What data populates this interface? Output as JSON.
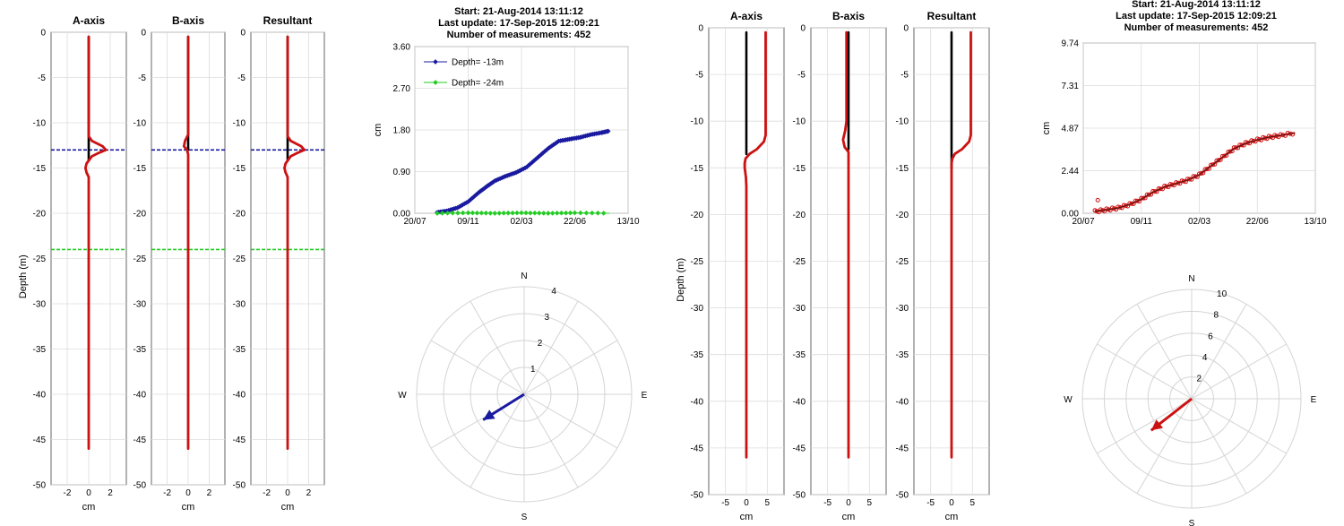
{
  "chart_data": [
    {
      "type": "line",
      "panel": "profile-a-axis",
      "title": "A-axis",
      "xlabel": "cm",
      "ylabel": "Depth (m)",
      "xlim": [
        -3.5,
        3.5
      ],
      "xticks": [
        "-2",
        "0",
        "2"
      ],
      "ylim": [
        -50,
        0
      ],
      "yticks": [
        "0",
        "-5",
        "-10",
        "-15",
        "-20",
        "-25",
        "-30",
        "-35",
        "-40",
        "-45",
        "-50"
      ],
      "grid": true,
      "reference_lines": [
        {
          "depth": -13,
          "color": "#1a1aa0"
        },
        {
          "depth": -24,
          "color": "#22cc22"
        }
      ],
      "series": [
        {
          "color": "#000000",
          "points": [
            [
              0,
              -0.5
            ],
            [
              0,
              -11.5
            ],
            [
              0,
              -13
            ],
            [
              0,
              -14.2
            ]
          ]
        },
        {
          "color": "#cc1111",
          "points": [
            [
              0,
              -0.5
            ],
            [
              0,
              -11.5
            ],
            [
              0.3,
              -12
            ],
            [
              1.3,
              -12.6
            ],
            [
              1.6,
              -13
            ],
            [
              1.0,
              -13.3
            ],
            [
              0.3,
              -13.7
            ],
            [
              -0.2,
              -14.5
            ],
            [
              -0.3,
              -15
            ],
            [
              -0.2,
              -15.5
            ],
            [
              0,
              -16
            ],
            [
              0,
              -46
            ]
          ]
        }
      ]
    },
    {
      "type": "line",
      "panel": "profile-b-axis",
      "title": "B-axis",
      "xlabel": "cm",
      "xlim": [
        -3.5,
        3.5
      ],
      "xticks": [
        "-2",
        "0",
        "2"
      ],
      "ylim": [
        -50,
        0
      ],
      "yticks": [
        "0",
        "-5",
        "-10",
        "-15",
        "-20",
        "-25",
        "-30",
        "-35",
        "-40",
        "-45",
        "-50"
      ],
      "grid": true,
      "reference_lines": [
        {
          "depth": -13,
          "color": "#1a1aa0"
        },
        {
          "depth": -24,
          "color": "#22cc22"
        }
      ],
      "series": [
        {
          "color": "#000000",
          "points": [
            [
              0,
              -0.5
            ],
            [
              0,
              -11.5
            ],
            [
              0,
              -13
            ]
          ]
        },
        {
          "color": "#cc1111",
          "points": [
            [
              0,
              -0.5
            ],
            [
              0,
              -11.3
            ],
            [
              -0.3,
              -12
            ],
            [
              -0.4,
              -12.6
            ],
            [
              -0.1,
              -13
            ],
            [
              0,
              -13.5
            ],
            [
              0,
              -46
            ]
          ]
        }
      ]
    },
    {
      "type": "line",
      "panel": "profile-resultant",
      "title": "Resultant",
      "xlabel": "cm",
      "xlim": [
        -3.5,
        3.5
      ],
      "xticks": [
        "-2",
        "0",
        "2"
      ],
      "ylim": [
        -50,
        0
      ],
      "yticks": [
        "0",
        "-5",
        "-10",
        "-15",
        "-20",
        "-25",
        "-30",
        "-35",
        "-40",
        "-45",
        "-50"
      ],
      "grid": true,
      "reference_lines": [
        {
          "depth": -13,
          "color": "#1a1aa0"
        },
        {
          "depth": -24,
          "color": "#22cc22"
        }
      ],
      "series": [
        {
          "color": "#000000",
          "points": [
            [
              0,
              -0.5
            ],
            [
              0,
              -11.5
            ],
            [
              0,
              -13
            ],
            [
              0,
              -14.2
            ]
          ]
        },
        {
          "color": "#cc1111",
          "points": [
            [
              0,
              -0.5
            ],
            [
              0,
              -11.5
            ],
            [
              0.3,
              -12
            ],
            [
              1.3,
              -12.6
            ],
            [
              1.6,
              -13
            ],
            [
              1.0,
              -13.3
            ],
            [
              0.3,
              -13.7
            ],
            [
              -0.2,
              -14.5
            ],
            [
              -0.3,
              -15
            ],
            [
              -0.2,
              -15.5
            ],
            [
              0,
              -16
            ],
            [
              0,
              -46
            ]
          ]
        }
      ]
    },
    {
      "type": "line",
      "panel": "timeseries-left",
      "header": [
        "Start: 21-Aug-2014 13:11:12",
        "Last update: 17-Sep-2015 12:09:21",
        "Number of measurements: 452"
      ],
      "ylabel": "cm",
      "xticks": [
        "20/07",
        "09/11",
        "02/03",
        "22/06",
        "13/10"
      ],
      "yticks": [
        "0.00",
        "0.90",
        "1.80",
        "2.70",
        "3.60"
      ],
      "ylim": [
        0,
        3.6
      ],
      "xlim": [
        0,
        4
      ],
      "grid": true,
      "legend": "top-left",
      "series": [
        {
          "name": "Depth= -13m",
          "color": "#1a1aa0",
          "marker": "diamond",
          "points": [
            [
              0.42,
              0.02
            ],
            [
              0.6,
              0.05
            ],
            [
              0.8,
              0.12
            ],
            [
              1.0,
              0.25
            ],
            [
              1.2,
              0.45
            ],
            [
              1.35,
              0.58
            ],
            [
              1.5,
              0.7
            ],
            [
              1.7,
              0.8
            ],
            [
              1.9,
              0.88
            ],
            [
              2.1,
              1.0
            ],
            [
              2.3,
              1.2
            ],
            [
              2.5,
              1.4
            ],
            [
              2.7,
              1.56
            ],
            [
              2.9,
              1.6
            ],
            [
              3.1,
              1.64
            ],
            [
              3.3,
              1.7
            ],
            [
              3.5,
              1.74
            ],
            [
              3.65,
              1.78
            ]
          ]
        },
        {
          "name": "Depth= -24m",
          "color": "#22cc22",
          "marker": "diamond",
          "points": [
            [
              0.42,
              0.0
            ],
            [
              1.0,
              0.01
            ],
            [
              1.5,
              0.0
            ],
            [
              2.0,
              0.01
            ],
            [
              2.5,
              0.0
            ],
            [
              3.0,
              0.01
            ],
            [
              3.65,
              0.0
            ]
          ]
        }
      ]
    },
    {
      "type": "line",
      "panel": "polar-left",
      "polar": true,
      "compass": [
        "N",
        "E",
        "S",
        "W"
      ],
      "rticks": [
        "1",
        "2",
        "3",
        "4"
      ],
      "rmax": 4,
      "vectors": [
        {
          "color": "#1a1aa0",
          "azimuth_deg": 238,
          "magnitude": 1.8
        }
      ]
    },
    {
      "type": "line",
      "panel": "profile-a-axis-2",
      "title": "A-axis",
      "xlabel": "cm",
      "ylabel": "Depth (m)",
      "xlim": [
        -9,
        9
      ],
      "xticks": [
        "-5",
        "0",
        "5"
      ],
      "ylim": [
        -50,
        0
      ],
      "yticks": [
        "0",
        "-5",
        "-10",
        "-15",
        "-20",
        "-25",
        "-30",
        "-35",
        "-40",
        "-45",
        "-50"
      ],
      "grid": true,
      "series": [
        {
          "color": "#000000",
          "points": [
            [
              0,
              -0.5
            ],
            [
              0,
              -13.5
            ]
          ]
        },
        {
          "color": "#cc1111",
          "points": [
            [
              4.6,
              -0.5
            ],
            [
              4.6,
              -11.5
            ],
            [
              4.2,
              -12.2
            ],
            [
              2.5,
              -13
            ],
            [
              0.8,
              -13.5
            ],
            [
              -0.2,
              -14
            ],
            [
              -0.4,
              -14.5
            ],
            [
              -0.4,
              -15
            ],
            [
              -0.1,
              -16
            ],
            [
              0,
              -17
            ],
            [
              0,
              -46
            ]
          ]
        }
      ]
    },
    {
      "type": "line",
      "panel": "profile-b-axis-2",
      "title": "B-axis",
      "xlabel": "cm",
      "xlim": [
        -9,
        9
      ],
      "xticks": [
        "-5",
        "0",
        "5"
      ],
      "ylim": [
        -50,
        0
      ],
      "yticks": [
        "0",
        "-5",
        "-10",
        "-15",
        "-20",
        "-25",
        "-30",
        "-35",
        "-40",
        "-45",
        "-50"
      ],
      "grid": true,
      "series": [
        {
          "color": "#000000",
          "points": [
            [
              0,
              -0.5
            ],
            [
              0,
              -13
            ]
          ]
        },
        {
          "color": "#cc1111",
          "points": [
            [
              -0.5,
              -0.5
            ],
            [
              -0.5,
              -10
            ],
            [
              -0.8,
              -11
            ],
            [
              -1.3,
              -12
            ],
            [
              -0.9,
              -12.8
            ],
            [
              0,
              -13.3
            ],
            [
              0,
              -46
            ]
          ]
        }
      ]
    },
    {
      "type": "line",
      "panel": "profile-resultant-2",
      "title": "Resultant",
      "xlabel": "cm",
      "xlim": [
        -9,
        9
      ],
      "xticks": [
        "-5",
        "0",
        "5"
      ],
      "ylim": [
        -50,
        0
      ],
      "yticks": [
        "0",
        "-5",
        "-10",
        "-15",
        "-20",
        "-25",
        "-30",
        "-35",
        "-40",
        "-45",
        "-50"
      ],
      "grid": true,
      "series": [
        {
          "color": "#000000",
          "points": [
            [
              0,
              -0.5
            ],
            [
              0,
              -15
            ]
          ]
        },
        {
          "color": "#cc1111",
          "points": [
            [
              4.6,
              -0.5
            ],
            [
              4.6,
              -11.5
            ],
            [
              4.2,
              -12.2
            ],
            [
              2.5,
              -13
            ],
            [
              0.8,
              -13.5
            ],
            [
              0.2,
              -14
            ],
            [
              0,
              -14.5
            ],
            [
              0,
              -46
            ]
          ]
        }
      ]
    },
    {
      "type": "line",
      "panel": "timeseries-right",
      "header": [
        "Start: 21-Aug-2014 13:11:12",
        "Last update: 17-Sep-2015 12:09:21",
        "Number of measurements: 452"
      ],
      "ylabel": "cm",
      "xticks": [
        "20/07",
        "09/11",
        "02/03",
        "22/06",
        "13/10"
      ],
      "yticks": [
        "0.00",
        "2.44",
        "4.87",
        "7.31",
        "9.74"
      ],
      "ylim": [
        0,
        9.74
      ],
      "xlim": [
        0,
        4
      ],
      "grid": true,
      "series": [
        {
          "color": "#cc1111",
          "marker": "circle",
          "points": [
            [
              0.2,
              0.1
            ],
            [
              0.4,
              0.2
            ],
            [
              0.6,
              0.3
            ],
            [
              0.8,
              0.5
            ],
            [
              1.0,
              0.8
            ],
            [
              1.2,
              1.2
            ],
            [
              1.4,
              1.5
            ],
            [
              1.6,
              1.7
            ],
            [
              1.8,
              1.9
            ],
            [
              2.0,
              2.2
            ],
            [
              2.2,
              2.7
            ],
            [
              2.4,
              3.2
            ],
            [
              2.6,
              3.7
            ],
            [
              2.8,
              4.0
            ],
            [
              3.0,
              4.2
            ],
            [
              3.2,
              4.35
            ],
            [
              3.4,
              4.45
            ],
            [
              3.65,
              4.6
            ]
          ]
        }
      ],
      "outliers": [
        [
          0.25,
          0.75
        ]
      ]
    },
    {
      "type": "line",
      "panel": "polar-right",
      "polar": true,
      "compass": [
        "N",
        "E",
        "S",
        "W"
      ],
      "rticks": [
        "2",
        "4",
        "6",
        "8",
        "10"
      ],
      "rmax": 10,
      "vectors": [
        {
          "color": "#cc1111",
          "azimuth_deg": 232,
          "magnitude": 4.7
        }
      ]
    }
  ]
}
